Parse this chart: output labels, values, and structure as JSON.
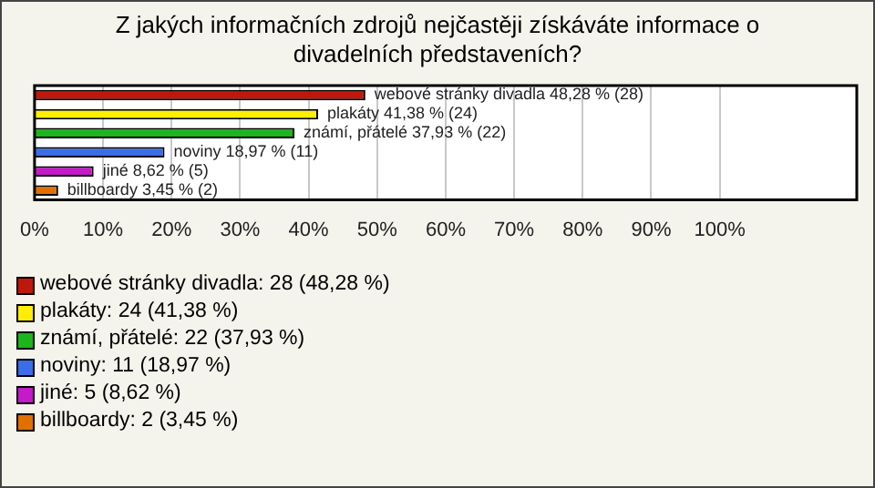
{
  "chart_data": {
    "type": "bar",
    "orientation": "horizontal",
    "title": "Z jakých informačních zdrojů nejčastěji získáváte informace o divadelních představeních?",
    "categories": [
      null,
      null,
      null,
      null,
      null,
      null
    ],
    "values": [
      48.28,
      41.38,
      37.93,
      18.97,
      8.62,
      3.45
    ],
    "colors": [
      "#c0170d",
      "#ffee00",
      "#1cb51c",
      "#3a6ee8",
      "#c41ac9",
      "#e07000"
    ],
    "value_labels": [
      "webové stránky divadla 48,28 % (28)",
      "plakáty 41,38 % (24)",
      "známí, přátelé 37,93 % (22)",
      "noviny 18,97 % (11)",
      "jiné 8,62 % (5)",
      "billboardy 3,45 % (2)"
    ],
    "xlim": [
      0,
      120
    ],
    "xticks": [
      {
        "value": 0,
        "label": "0%"
      },
      {
        "value": 10,
        "label": "10%"
      },
      {
        "value": 20,
        "label": "20%"
      },
      {
        "value": 30,
        "label": "30%"
      },
      {
        "value": 40,
        "label": "40%"
      },
      {
        "value": 50,
        "label": "50%"
      },
      {
        "value": 60,
        "label": "60%"
      },
      {
        "value": 70,
        "label": "70%"
      },
      {
        "value": 80,
        "label": "80%"
      },
      {
        "value": 90,
        "label": "90%"
      },
      {
        "value": 100,
        "label": "100%"
      }
    ],
    "grid": "x",
    "annotations": [
      "webové stránky divadla: 28 (48,28 %)",
      "plakáty: 24 (41,38 %)",
      "známí, přátelé: 22 (37,93 %)",
      "noviny: 11 (18,97 %)",
      "jiné: 5 (8,62 %)",
      "billboardy: 2 (3,45 %)"
    ]
  }
}
